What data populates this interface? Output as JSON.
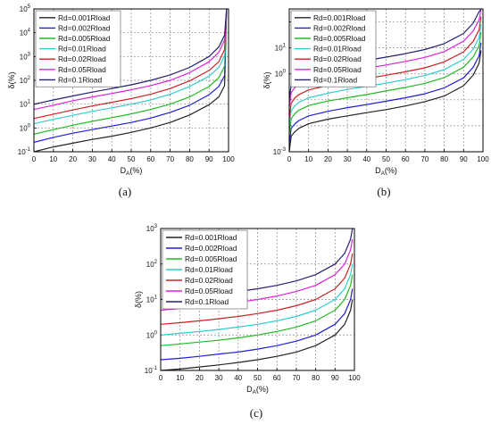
{
  "figure": {
    "panels": [
      {
        "caption": "(a)"
      },
      {
        "caption": "(b)"
      },
      {
        "caption": "(c)"
      }
    ]
  },
  "chart_data": [
    {
      "type": "line",
      "panel": "(a)",
      "title": "",
      "xlabel": "D_A(%)",
      "ylabel": "δ(%)",
      "xlim": [
        0,
        100
      ],
      "ylim_log10": [
        -1,
        5
      ],
      "yscale": "log",
      "x_ticks": [
        "0",
        "10",
        "20",
        "30",
        "40",
        "50",
        "60",
        "70",
        "80",
        "90",
        "100"
      ],
      "y_tick_labels": [
        "10^-1",
        "10^0",
        "10^1",
        "10^2",
        "10^3",
        "10^4",
        "10^5"
      ],
      "grid": true,
      "legend_position": "top-left",
      "x": [
        0,
        10,
        20,
        30,
        40,
        50,
        60,
        70,
        80,
        90,
        95,
        98,
        99
      ],
      "series": [
        {
          "name": "Rd=0.001Rload",
          "color": "#222222",
          "values": [
            0.1,
            0.16,
            0.23,
            0.33,
            0.45,
            0.65,
            1.0,
            1.7,
            3.5,
            9.5,
            20,
            60,
            100000
          ]
        },
        {
          "name": "Rd=0.002Rload",
          "color": "#1f1fd6",
          "values": [
            0.25,
            0.4,
            0.6,
            0.85,
            1.2,
            1.7,
            2.6,
            4.5,
            9,
            25,
            55,
            160,
            100000
          ]
        },
        {
          "name": "Rd=0.005Rload",
          "color": "#22bb22",
          "values": [
            0.55,
            0.85,
            1.3,
            1.9,
            2.7,
            3.9,
            6,
            10,
            20,
            55,
            130,
            400,
            100000
          ]
        },
        {
          "name": "Rd=0.01Rload",
          "color": "#33cccc",
          "values": [
            1.5,
            2.3,
            3.4,
            5,
            7,
            10,
            15,
            26,
            55,
            150,
            350,
            1100,
            100000
          ]
        },
        {
          "name": "Rd=0.02Rload",
          "color": "#cc2222",
          "values": [
            2.5,
            3.8,
            5.7,
            8.4,
            12,
            17,
            26,
            45,
            95,
            260,
            600,
            2000,
            100000
          ]
        },
        {
          "name": "Rd=0.05Rload",
          "color": "#dd22dd",
          "values": [
            6,
            9,
            14,
            20,
            28,
            40,
            60,
            100,
            210,
            600,
            1500,
            5000,
            100000
          ]
        },
        {
          "name": "Rd=0.1Rload",
          "color": "#22226e",
          "values": [
            10,
            15,
            22,
            32,
            45,
            65,
            100,
            170,
            350,
            1000,
            2500,
            8000,
            100000
          ]
        }
      ]
    },
    {
      "type": "line",
      "panel": "(b)",
      "title": "",
      "xlabel": "D_A(%)",
      "ylabel": "δ(%)",
      "xlim": [
        0,
        100
      ],
      "ylim_log10": [
        -3,
        2.5
      ],
      "yscale": "log",
      "x_ticks": [
        "0",
        "10",
        "20",
        "30",
        "40",
        "50",
        "60",
        "70",
        "80",
        "90",
        "100"
      ],
      "y_tick_labels": [
        "10^-3",
        "10^0",
        "10^1"
      ],
      "grid": true,
      "legend_position": "top-left",
      "x": [
        0,
        1,
        3,
        5,
        10,
        20,
        30,
        40,
        50,
        60,
        70,
        80,
        90,
        95,
        98,
        99
      ],
      "series": [
        {
          "name": "Rd=0.001Rload",
          "color": "#222222",
          "values": [
            0.001,
            0.004,
            0.006,
            0.008,
            0.012,
            0.018,
            0.024,
            0.032,
            0.042,
            0.058,
            0.085,
            0.14,
            0.35,
            0.9,
            2.6,
            8
          ]
        },
        {
          "name": "Rd=0.002Rload",
          "color": "#1f1fd6",
          "values": [
            0.002,
            0.008,
            0.012,
            0.016,
            0.024,
            0.036,
            0.05,
            0.066,
            0.088,
            0.12,
            0.17,
            0.29,
            0.7,
            1.8,
            5,
            16
          ]
        },
        {
          "name": "Rd=0.005Rload",
          "color": "#22bb22",
          "values": [
            0.005,
            0.019,
            0.03,
            0.04,
            0.06,
            0.09,
            0.12,
            0.16,
            0.22,
            0.3,
            0.43,
            0.72,
            1.8,
            4.5,
            12,
            40
          ]
        },
        {
          "name": "Rd=0.01Rload",
          "color": "#33cccc",
          "values": [
            0.01,
            0.038,
            0.06,
            0.08,
            0.12,
            0.18,
            0.25,
            0.33,
            0.44,
            0.6,
            0.86,
            1.45,
            3.6,
            9,
            25,
            80
          ]
        },
        {
          "name": "Rd=0.02Rload",
          "color": "#cc2222",
          "values": [
            0.02,
            0.075,
            0.12,
            0.16,
            0.24,
            0.36,
            0.5,
            0.66,
            0.88,
            1.2,
            1.7,
            2.9,
            7,
            18,
            50,
            160
          ]
        },
        {
          "name": "Rd=0.05Rload",
          "color": "#dd22dd",
          "values": [
            0.05,
            0.19,
            0.3,
            0.4,
            0.6,
            0.9,
            1.25,
            1.65,
            2.2,
            3,
            4.3,
            7.2,
            18,
            45,
            120,
            300
          ]
        },
        {
          "name": "Rd=0.1Rload",
          "color": "#22226e",
          "values": [
            0.1,
            0.38,
            0.6,
            0.8,
            1.2,
            1.8,
            2.5,
            3.3,
            4.4,
            6,
            8.6,
            14.5,
            36,
            90,
            250,
            300
          ]
        }
      ]
    },
    {
      "type": "line",
      "panel": "(c)",
      "title": "",
      "xlabel": "D_A(%)",
      "ylabel": "δ(%)",
      "xlim": [
        0,
        100
      ],
      "ylim_log10": [
        -1,
        3
      ],
      "yscale": "log",
      "x_ticks": [
        "0",
        "10",
        "20",
        "30",
        "40",
        "50",
        "60",
        "70",
        "80",
        "90",
        "100"
      ],
      "y_tick_labels": [
        "10^-1",
        "10^0",
        "10^1",
        "10^2",
        "10^3"
      ],
      "grid": true,
      "legend_position": "top-left",
      "x": [
        0,
        10,
        20,
        30,
        40,
        50,
        60,
        70,
        80,
        90,
        95,
        98,
        99
      ],
      "series": [
        {
          "name": "Rd=0.001Rload",
          "color": "#222222",
          "values": [
            0.1,
            0.11,
            0.125,
            0.143,
            0.167,
            0.2,
            0.25,
            0.33,
            0.5,
            1.0,
            2.0,
            5.0,
            10
          ]
        },
        {
          "name": "Rd=0.002Rload",
          "color": "#1f1fd6",
          "values": [
            0.2,
            0.22,
            0.25,
            0.29,
            0.33,
            0.4,
            0.5,
            0.67,
            1.0,
            2.0,
            4.0,
            10,
            20
          ]
        },
        {
          "name": "Rd=0.005Rload",
          "color": "#22bb22",
          "values": [
            0.5,
            0.56,
            0.63,
            0.71,
            0.83,
            1.0,
            1.25,
            1.67,
            2.5,
            5.0,
            10,
            25,
            50
          ]
        },
        {
          "name": "Rd=0.01Rload",
          "color": "#33cccc",
          "values": [
            1.0,
            1.11,
            1.25,
            1.43,
            1.67,
            2.0,
            2.5,
            3.33,
            5.0,
            10,
            20,
            50,
            100
          ]
        },
        {
          "name": "Rd=0.02Rload",
          "color": "#cc2222",
          "values": [
            2.0,
            2.22,
            2.5,
            2.86,
            3.33,
            4.0,
            5.0,
            6.67,
            10,
            20,
            40,
            100,
            200
          ]
        },
        {
          "name": "Rd=0.05Rload",
          "color": "#dd22dd",
          "values": [
            5.0,
            5.56,
            6.25,
            7.14,
            8.33,
            10,
            12.5,
            16.7,
            25,
            50,
            100,
            250,
            500
          ]
        },
        {
          "name": "Rd=0.1Rload",
          "color": "#22226e",
          "values": [
            10,
            11.1,
            12.5,
            14.3,
            16.7,
            20,
            25,
            33.3,
            50,
            100,
            200,
            500,
            1000
          ]
        }
      ]
    }
  ]
}
